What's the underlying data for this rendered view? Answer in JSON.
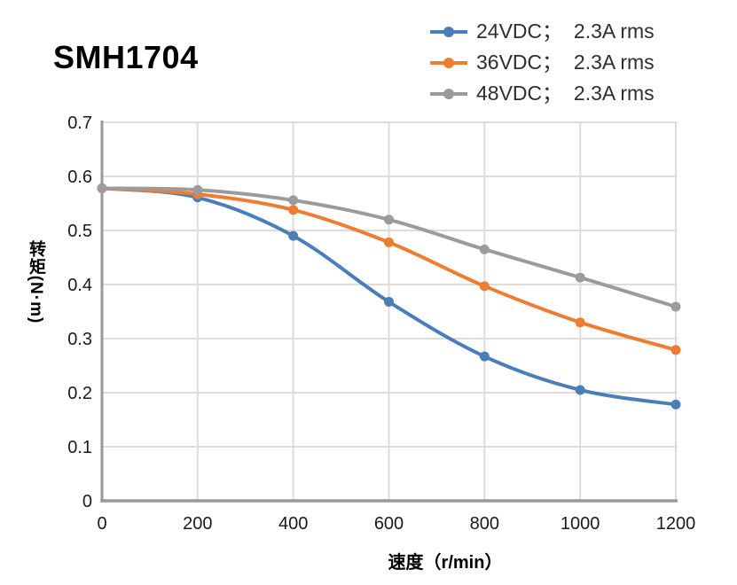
{
  "title": "SMH1704",
  "chart_data": {
    "type": "line",
    "title": "SMH1704",
    "xlabel": "速度（r/min）",
    "ylabel": "转矩(N·m)",
    "x": [
      0,
      200,
      400,
      600,
      800,
      1000,
      1200
    ],
    "x_ticks": [
      0,
      200,
      400,
      600,
      800,
      1000,
      1200
    ],
    "y_ticks": [
      0,
      0.1,
      0.2,
      0.3,
      0.4,
      0.5,
      0.6,
      0.7
    ],
    "xlim": [
      0,
      1200
    ],
    "ylim": [
      0,
      0.7
    ],
    "grid": true,
    "smooth_lines": true,
    "legend_position": "top-right",
    "series": [
      {
        "name": "24VDC；  2.3A rms",
        "color": "#4A7EBB",
        "values": [
          0.578,
          0.561,
          0.49,
          0.368,
          0.267,
          0.205,
          0.178
        ]
      },
      {
        "name": "36VDC；  2.3A rms",
        "color": "#ED7D31",
        "values": [
          0.578,
          0.567,
          0.538,
          0.478,
          0.397,
          0.33,
          0.279
        ]
      },
      {
        "name": "48VDC；  2.3A rms",
        "color": "#9B9B9B",
        "values": [
          0.578,
          0.575,
          0.556,
          0.52,
          0.465,
          0.413,
          0.359
        ]
      }
    ],
    "colors": {
      "grid": "#DCDCDC",
      "axis": "#9A9A9A",
      "tick_label": "#1A1A1A"
    }
  }
}
